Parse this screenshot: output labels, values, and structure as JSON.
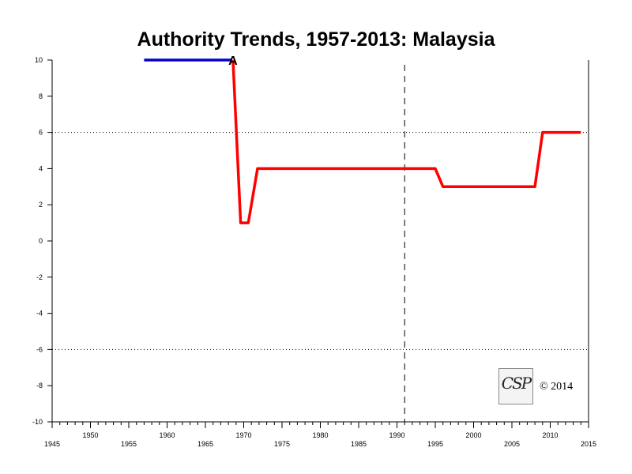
{
  "chart_data": {
    "type": "line",
    "title": "Authority Trends, 1957-2013: Malaysia",
    "xlim": [
      1945,
      2015
    ],
    "ylim": [
      -10,
      10
    ],
    "x_ticks_major": [
      1945,
      1950,
      1955,
      1960,
      1965,
      1970,
      1975,
      1980,
      1985,
      1990,
      1995,
      2000,
      2005,
      2010,
      2015
    ],
    "y_ticks": [
      10,
      8,
      6,
      4,
      2,
      0,
      -2,
      -4,
      -6,
      -8,
      -10
    ],
    "reference_lines_y": [
      6,
      -6
    ],
    "vertical_marker_x": 1991,
    "annotations": [
      {
        "text": "A",
        "x": 1968.6,
        "y": 10
      }
    ],
    "series": [
      {
        "color": "#0000cc",
        "x": [
          1957,
          1968.4
        ],
        "y": [
          10,
          10
        ]
      },
      {
        "color": "#ff0000",
        "x": [
          1968.6,
          1969.6,
          1970.6,
          1971.8,
          1995.0,
          1996.0,
          2008.0,
          2009.0,
          2014.0
        ],
        "y": [
          10,
          1,
          1,
          4,
          4,
          3,
          3,
          6,
          6
        ]
      }
    ],
    "grid": false,
    "legend": "none"
  },
  "watermark": {
    "logo_text": "CSP",
    "copyright": "© 2014"
  }
}
